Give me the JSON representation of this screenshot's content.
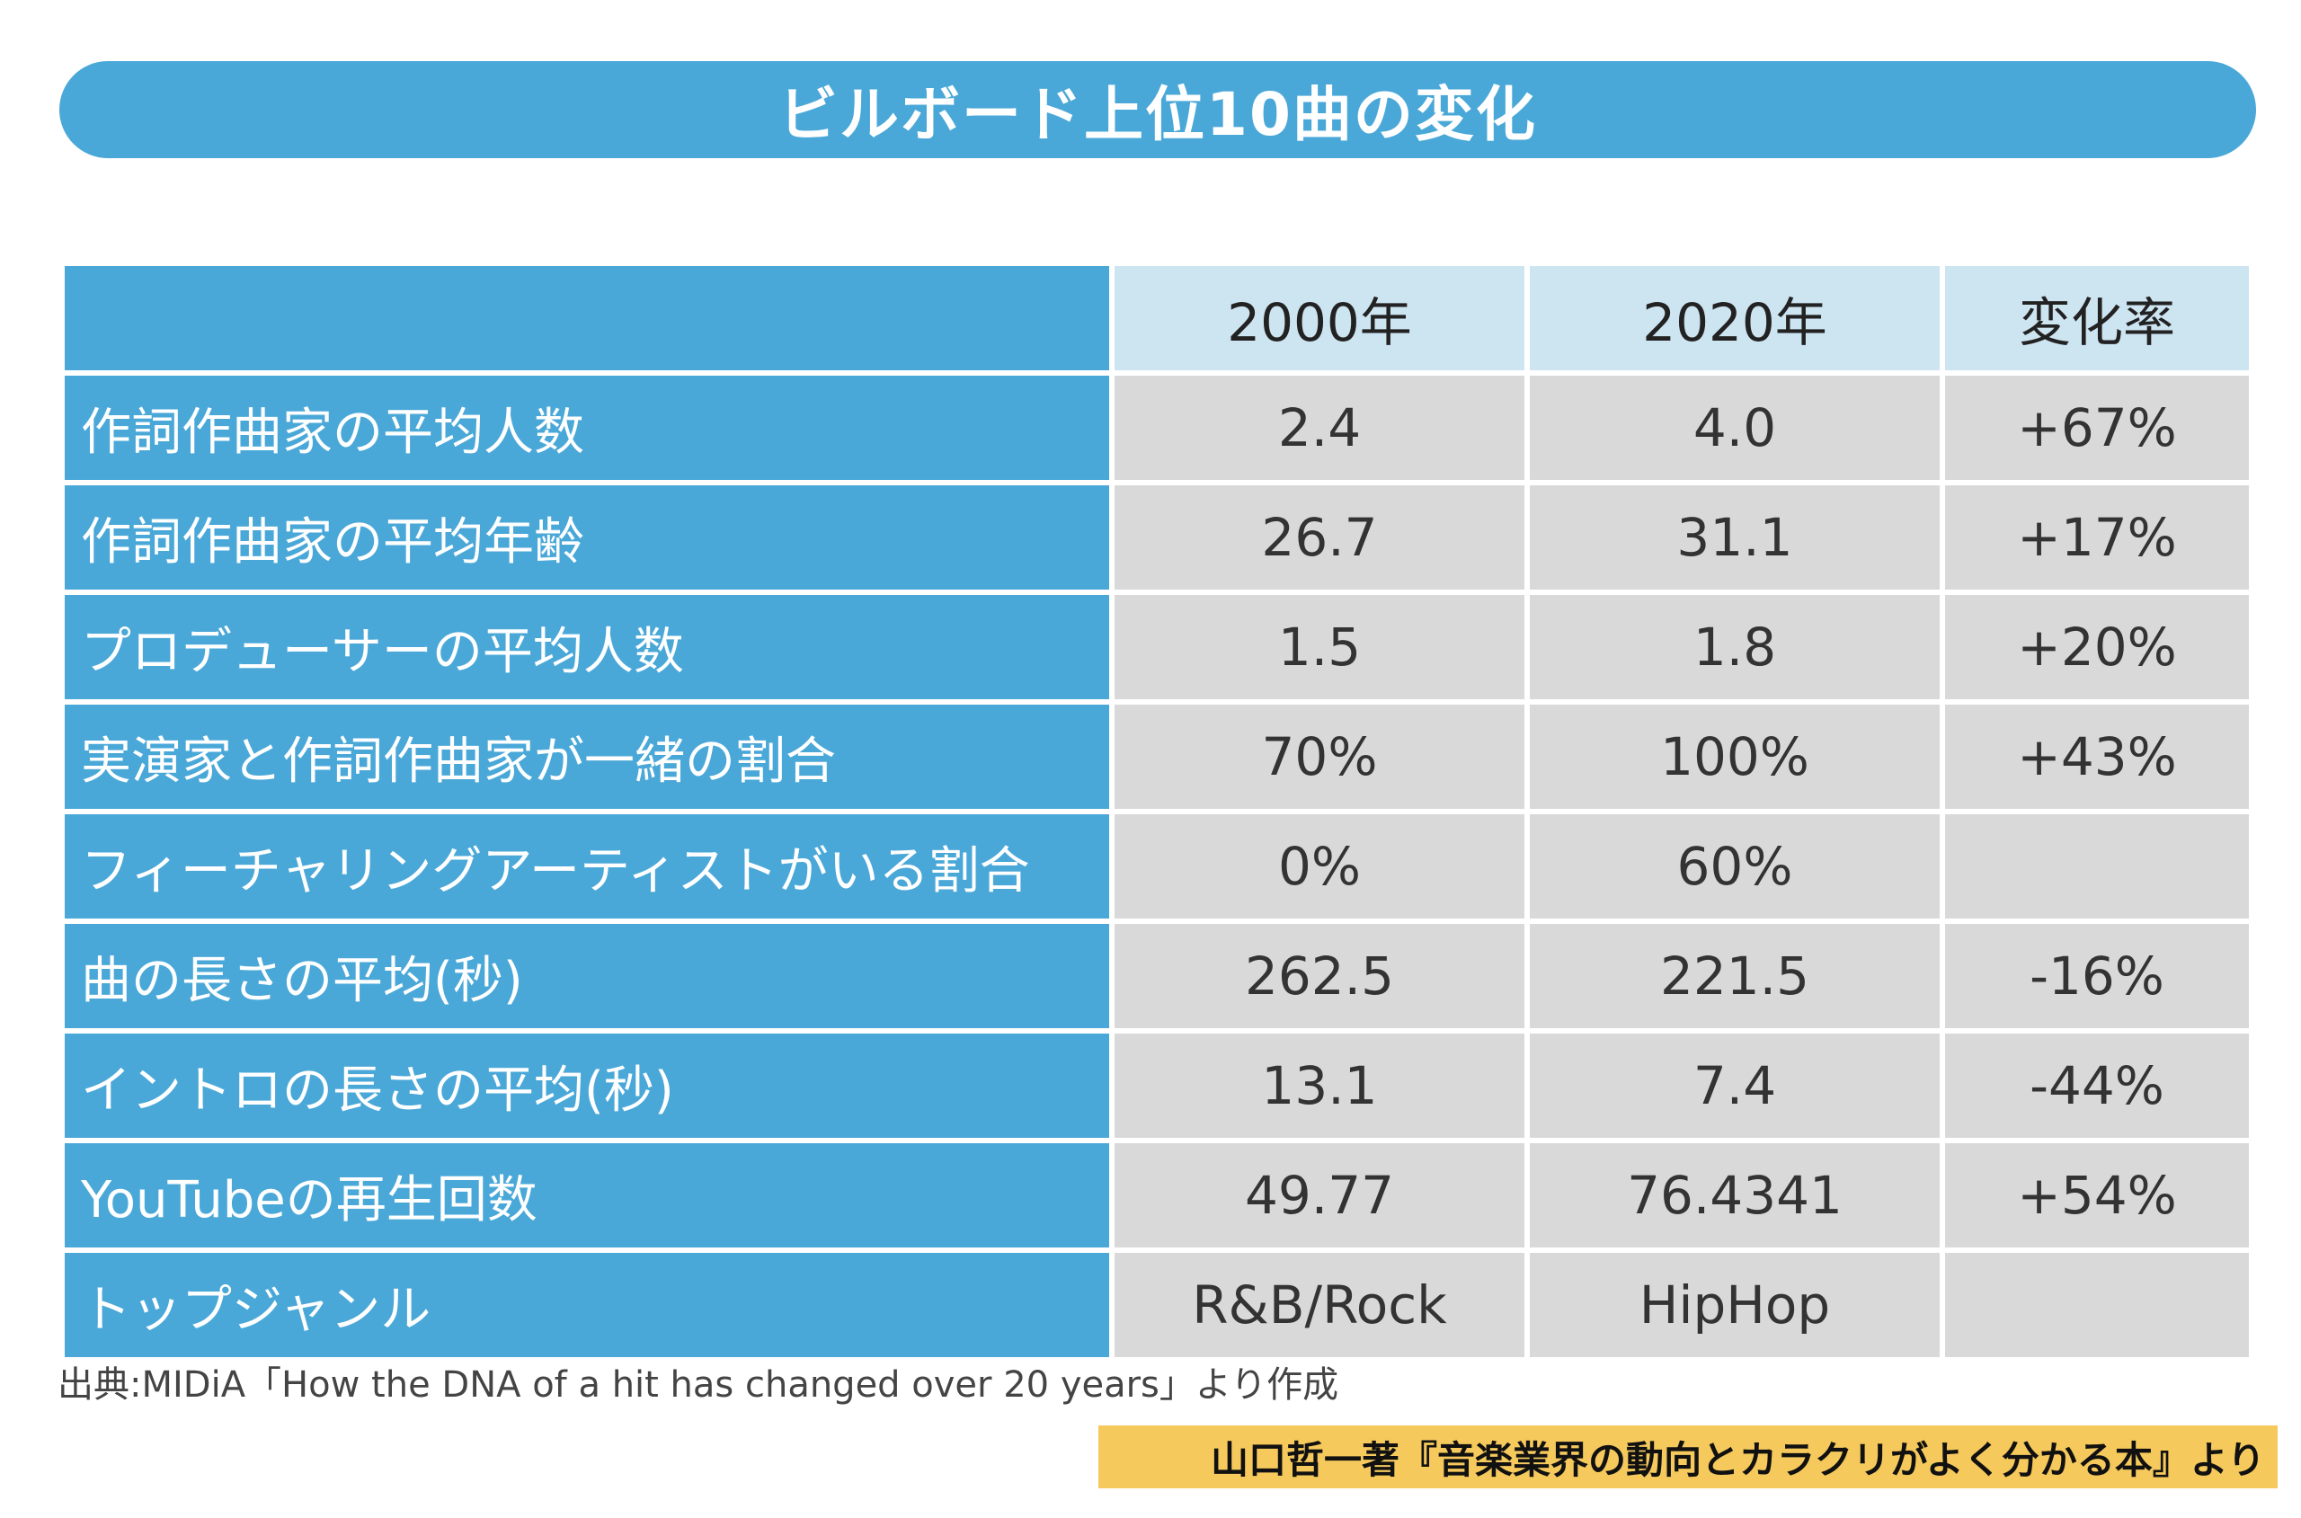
{
  "title": "ビルボード上位10曲の変化",
  "table": {
    "headers": [
      "",
      "2000年",
      "2020年",
      "変化率"
    ],
    "rows": [
      {
        "label": "作詞作曲家の平均人数",
        "y2000": "2.4",
        "y2020": "4.0",
        "rate": "+67%"
      },
      {
        "label": "作詞作曲家の平均年齢",
        "y2000": "26.7",
        "y2020": "31.1",
        "rate": "+17%"
      },
      {
        "label": "プロデューサーの平均人数",
        "y2000": "1.5",
        "y2020": "1.8",
        "rate": "+20%"
      },
      {
        "label": "実演家と作詞作曲家が一緒の割合",
        "y2000": "70%",
        "y2020": "100%",
        "rate": "+43%"
      },
      {
        "label": "フィーチャリングアーティストがいる割合",
        "y2000": "0%",
        "y2020": "60%",
        "rate": ""
      },
      {
        "label": "曲の長さの平均(秒)",
        "y2000": "262.5",
        "y2020": "221.5",
        "rate": "-16%"
      },
      {
        "label": "イントロの長さの平均(秒)",
        "y2000": "13.1",
        "y2020": "7.4",
        "rate": "-44%"
      },
      {
        "label": "YouTubeの再生回数",
        "y2000": "49.77",
        "y2020": "76.4341",
        "rate": "+54%"
      },
      {
        "label": "トップジャンル",
        "y2000": "R&B/Rock",
        "y2020": "HipHop",
        "rate": ""
      }
    ]
  },
  "source": "出典:MIDiA「How the DNA of a hit has changed over 20 years」より作成",
  "credit": "山口哲一著『音楽業界の動向とカラクリがよく分かる本』より",
  "colors": {
    "title_bar": "#4aa8d8",
    "header_cell": "#cde4f1",
    "value_cell": "#d9d9d9",
    "credit_bg": "#f5c95c"
  }
}
